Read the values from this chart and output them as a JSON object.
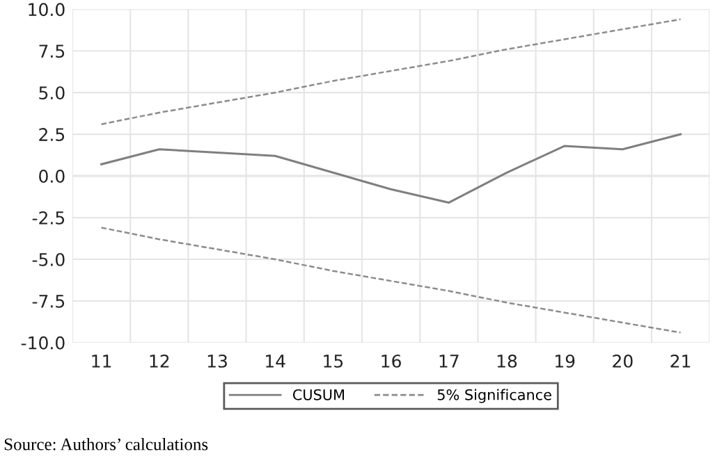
{
  "chart_data": {
    "type": "line",
    "categories": [
      "11",
      "12",
      "13",
      "14",
      "15",
      "16",
      "17",
      "18",
      "19",
      "20",
      "21"
    ],
    "series": [
      {
        "name": "CUSUM",
        "color": "#7f7f7f",
        "line_style": "solid",
        "values": [
          0.7,
          1.6,
          1.4,
          1.2,
          0.2,
          -0.8,
          -1.6,
          0.2,
          1.8,
          1.6,
          2.5
        ]
      },
      {
        "name": "5% Significance",
        "color": "#8c8c8c",
        "line_style": "dashed",
        "values": [
          3.1,
          3.8,
          4.4,
          5.0,
          5.7,
          6.3,
          6.9,
          7.6,
          8.2,
          8.8,
          9.4
        ]
      },
      {
        "color": "#8c8c8c",
        "line_style": "dashed",
        "values": [
          -3.1,
          -3.8,
          -4.4,
          -5.0,
          -5.7,
          -6.3,
          -6.9,
          -7.6,
          -8.2,
          -8.8,
          -9.4
        ]
      }
    ],
    "ylim": [
      -10,
      10
    ],
    "yticks": [
      {
        "value": -10,
        "label": "-10.0"
      },
      {
        "value": -7.5,
        "label": "-7.5"
      },
      {
        "value": -5,
        "label": "-5.0"
      },
      {
        "value": -2.5,
        "label": "-2.5"
      },
      {
        "value": 0,
        "label": "0.0"
      },
      {
        "value": 2.5,
        "label": "2.5"
      },
      {
        "value": 5,
        "label": "5.0"
      },
      {
        "value": 7.5,
        "label": "7.5"
      },
      {
        "value": 10,
        "label": "10.0"
      }
    ],
    "grid": true,
    "legend": "bottom",
    "annotations": [
      "Source: Authors’ calculations"
    ]
  }
}
